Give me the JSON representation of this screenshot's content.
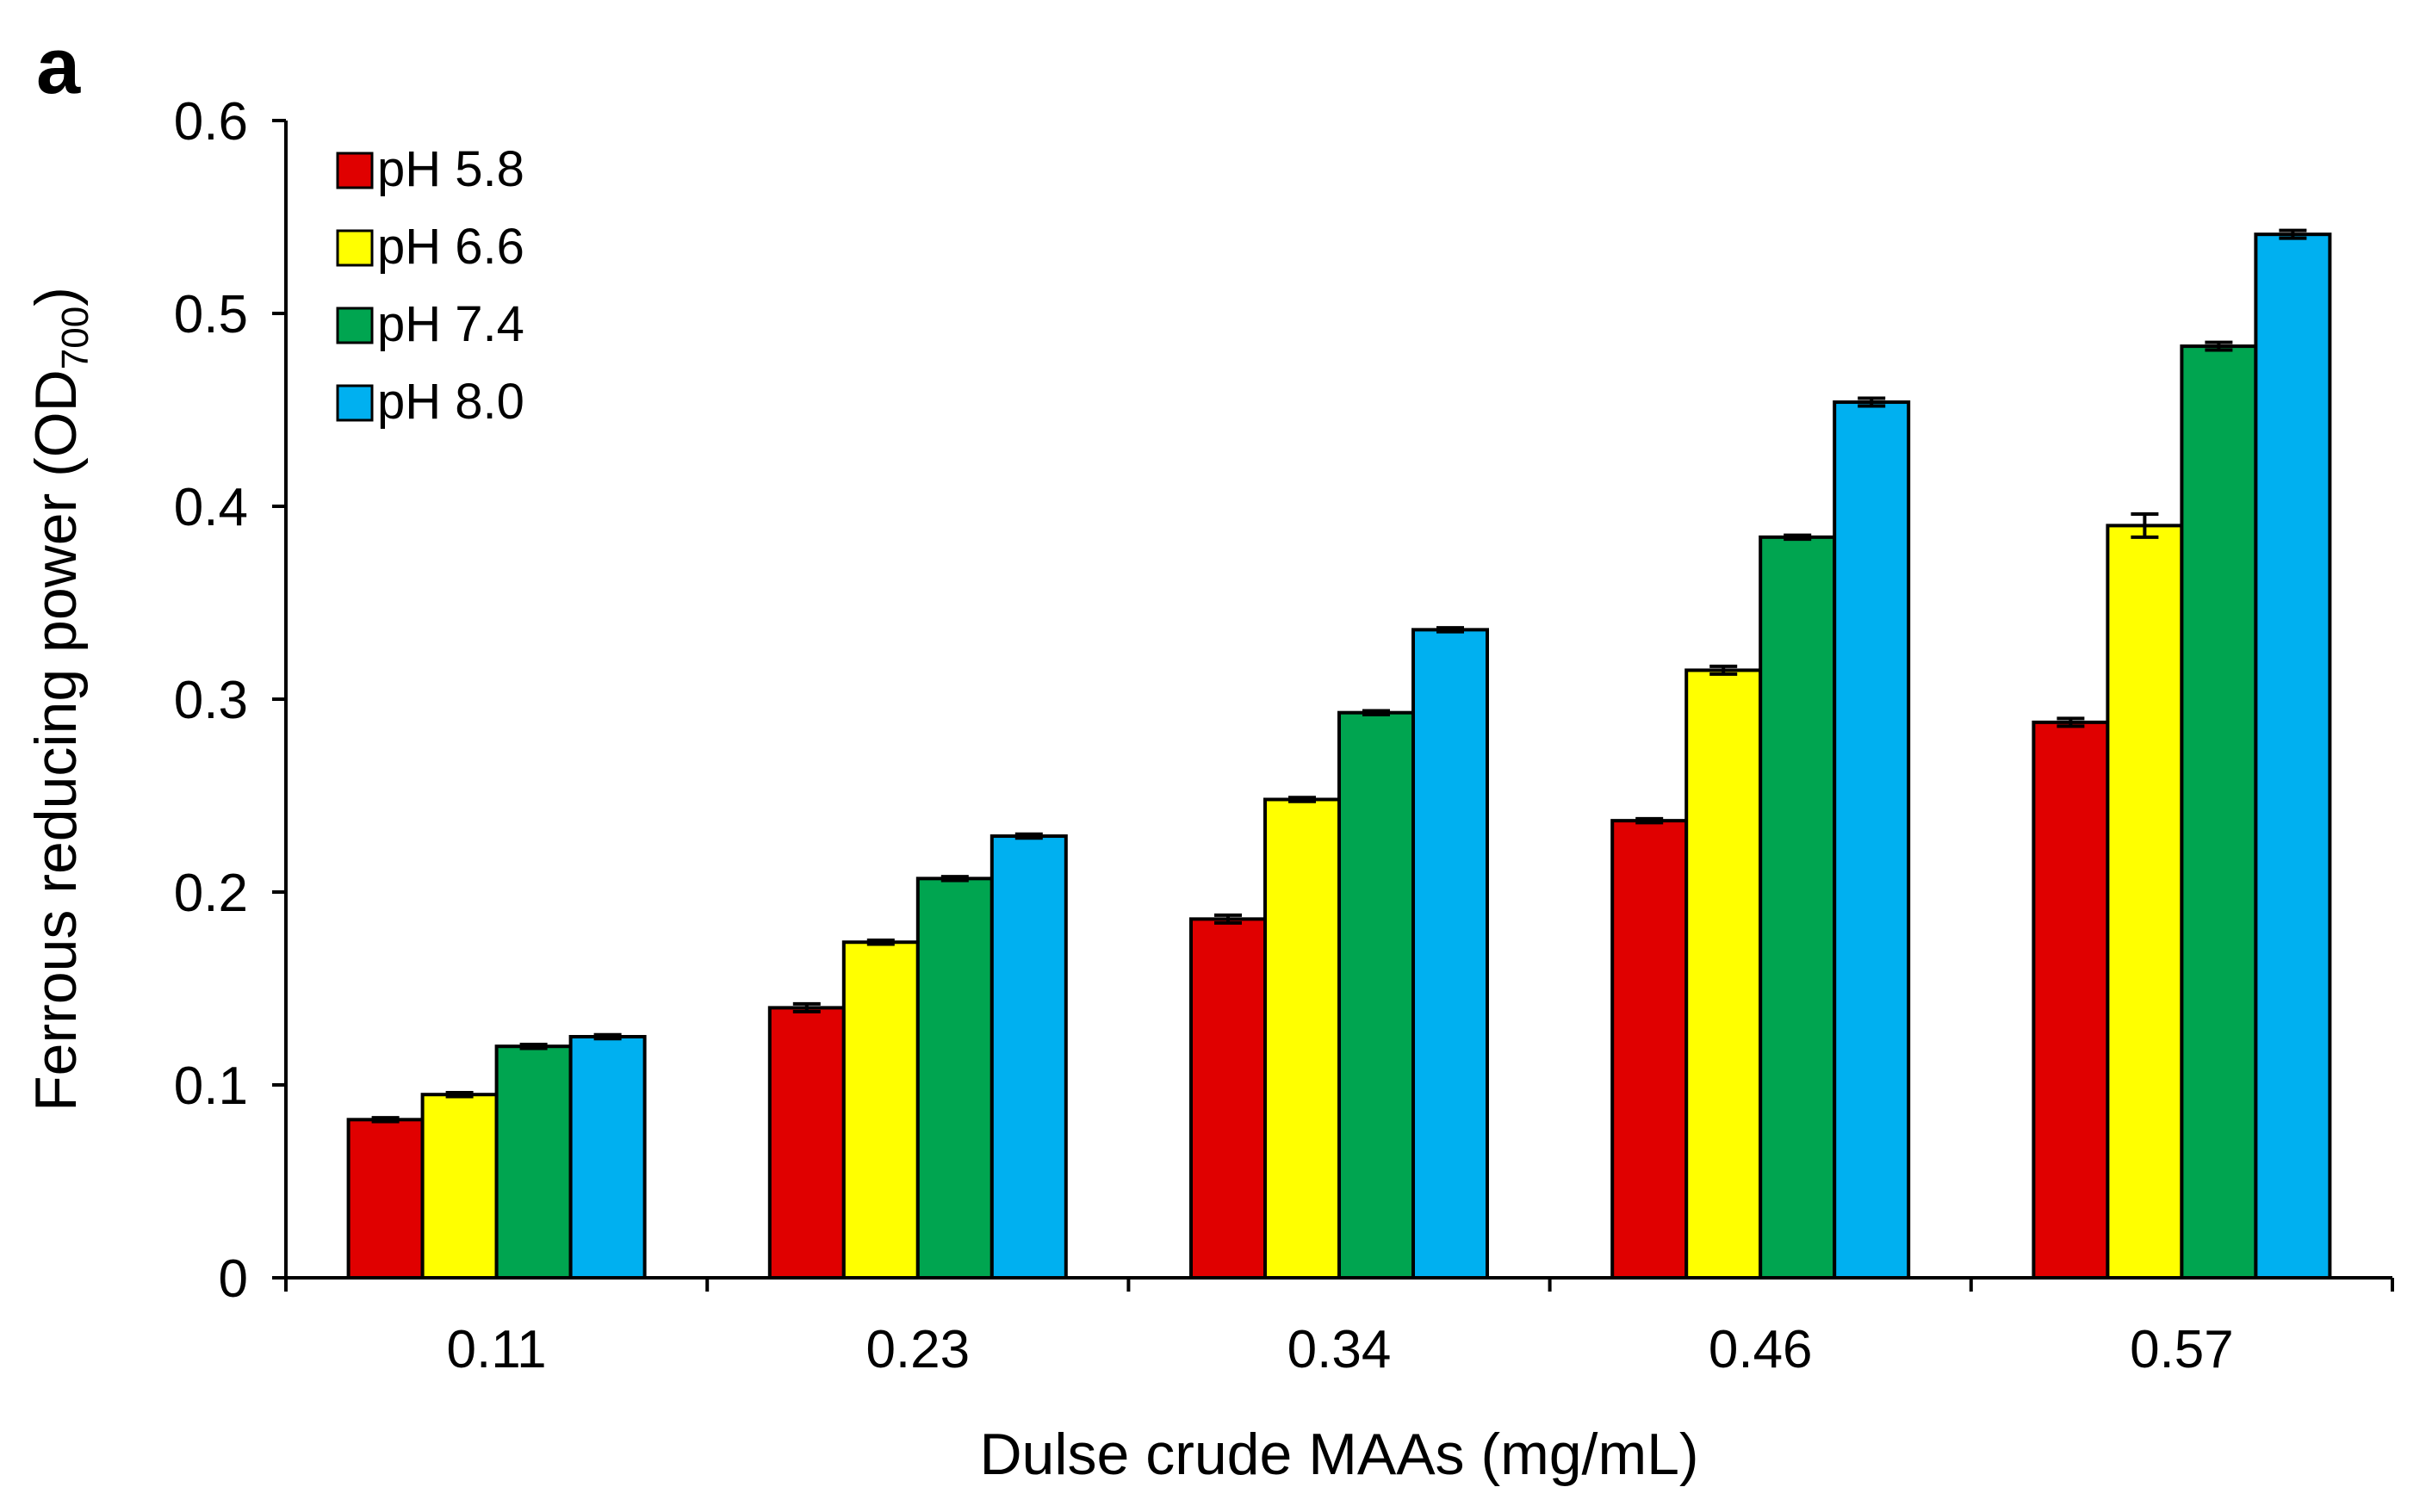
{
  "panel_label": "a",
  "chart_data": {
    "type": "bar",
    "title": "",
    "xlabel": "Dulse crude MAAs (mg/mL)",
    "ylabel_main": "Ferrous reducing power (OD",
    "ylabel_sub": "700",
    "ylabel_close": ")",
    "ylim": [
      0,
      0.6
    ],
    "yticks": [
      "0",
      "0.1",
      "0.2",
      "0.3",
      "0.4",
      "0.5",
      "0.6"
    ],
    "ytick_values": [
      0,
      0.1,
      0.2,
      0.3,
      0.4,
      0.5,
      0.6
    ],
    "grid": false,
    "legend_position": "top-left",
    "categories": [
      "0.11",
      "0.23",
      "0.34",
      "0.46",
      "0.57"
    ],
    "series": [
      {
        "name": "pH 5.8",
        "color": "#e00000",
        "values": [
          0.082,
          0.14,
          0.186,
          0.237,
          0.288
        ],
        "errors": [
          0.001,
          0.002,
          0.002,
          0.001,
          0.002
        ]
      },
      {
        "name": "pH 6.6",
        "color": "#ffff00",
        "values": [
          0.095,
          0.174,
          0.248,
          0.315,
          0.39
        ],
        "errors": [
          0.001,
          0.001,
          0.001,
          0.002,
          0.006
        ]
      },
      {
        "name": "pH 7.4",
        "color": "#00a550",
        "values": [
          0.12,
          0.207,
          0.293,
          0.384,
          0.483
        ],
        "errors": [
          0.001,
          0.001,
          0.001,
          0.001,
          0.002
        ]
      },
      {
        "name": "pH 8.0",
        "color": "#00b0f0",
        "values": [
          0.125,
          0.229,
          0.336,
          0.454,
          0.541
        ],
        "errors": [
          0.001,
          0.001,
          0.001,
          0.002,
          0.002
        ]
      }
    ]
  }
}
